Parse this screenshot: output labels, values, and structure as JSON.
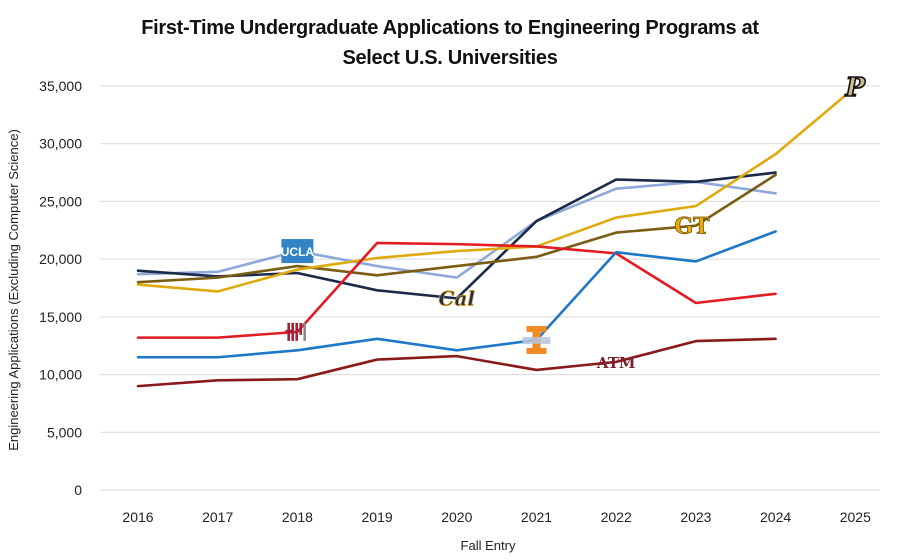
{
  "chart_data": {
    "type": "line",
    "title": [
      "First-Time Undergraduate Applications to Engineering Programs at",
      "Select U.S. Universities"
    ],
    "xlabel": "Fall Entry",
    "ylabel": "Engineering Applications (Excluding Computer Science)",
    "x": [
      "2016",
      "2017",
      "2018",
      "2019",
      "2020",
      "2021",
      "2022",
      "2023",
      "2024",
      "2025"
    ],
    "ylim": [
      0,
      35000
    ],
    "yticks": [
      0,
      5000,
      10000,
      15000,
      20000,
      25000,
      30000,
      35000
    ],
    "ytick_labels": [
      "0",
      "5,000",
      "10,000",
      "15,000",
      "20,000",
      "25,000",
      "30,000",
      "35,000"
    ],
    "grid": true,
    "legend": "none (series identified by inline university logos)",
    "series": [
      {
        "name": "UCLA",
        "color": "#8EA9DB",
        "logo_label": "UCLA",
        "logo_at": "2018",
        "values": [
          18700,
          18900,
          20700,
          19400,
          18400,
          23300,
          26100,
          26700,
          25700
        ]
      },
      {
        "name": "UC Berkeley",
        "color": "#1B2A4A",
        "logo_label": "Cal",
        "logo_at": "2020",
        "values": [
          19000,
          18500,
          18800,
          17300,
          16600,
          23300,
          26900,
          26700,
          27500
        ]
      },
      {
        "name": "Georgia Tech",
        "color": "#7A5C12",
        "logo_label": "GT",
        "logo_at": "2023",
        "values": [
          18000,
          18400,
          19400,
          18600,
          19400,
          20200,
          22300,
          22900,
          27300
        ]
      },
      {
        "name": "Purdue",
        "color": "#E0AA0F",
        "logo_label": "P",
        "logo_at": "2025",
        "values": [
          17800,
          17200,
          19100,
          20100,
          20700,
          21100,
          23600,
          24600,
          29100,
          34900
        ]
      },
      {
        "name": "MIT",
        "color": "#E31B23",
        "logo_label": "MIT",
        "logo_at": "2018",
        "values": [
          13200,
          13200,
          13700,
          21400,
          21300,
          21100,
          20500,
          16200,
          17000
        ]
      },
      {
        "name": "Illinois",
        "color": "#1F77C8",
        "logo_label": "I",
        "logo_at": "2021",
        "values": [
          11500,
          11500,
          12100,
          13100,
          12100,
          13000,
          20600,
          19800,
          22400
        ]
      },
      {
        "name": "Texas A&M",
        "color": "#8B1A1A",
        "logo_label": "ATM",
        "logo_at": "2022",
        "values": [
          9000,
          9500,
          9600,
          11300,
          11600,
          10400,
          11100,
          12900,
          13100
        ]
      }
    ]
  }
}
